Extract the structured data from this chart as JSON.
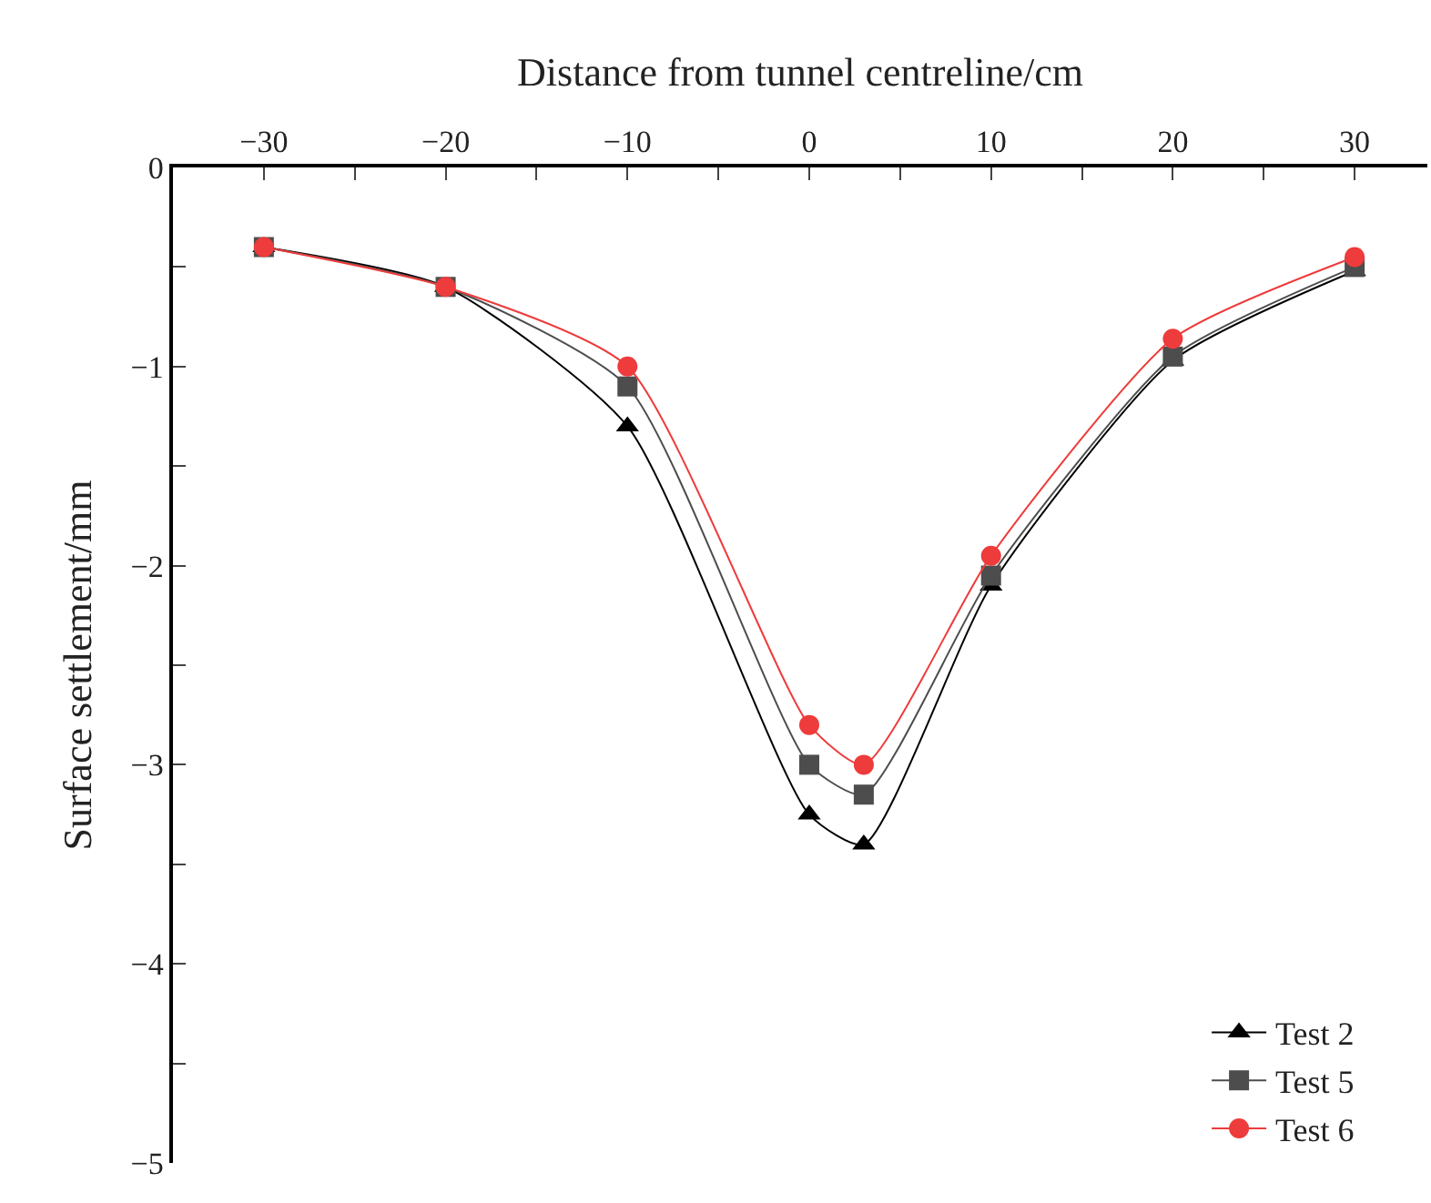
{
  "chart_data": {
    "type": "line",
    "xlabel": "Distance from tunnel centreline/cm",
    "ylabel": "Surface settlement/mm",
    "x": [
      -30,
      -20,
      -10,
      0,
      3,
      10,
      20,
      30
    ],
    "series": [
      {
        "name": "Test 2",
        "color": "#000000",
        "marker": "triangle",
        "values": [
          -0.4,
          -0.6,
          -1.3,
          -3.25,
          -3.4,
          -2.1,
          -0.97,
          -0.52
        ]
      },
      {
        "name": "Test 5",
        "color": "#4d4d4d",
        "marker": "square",
        "values": [
          -0.4,
          -0.6,
          -1.1,
          -3.0,
          -3.15,
          -2.05,
          -0.95,
          -0.5
        ]
      },
      {
        "name": "Test 6",
        "color": "#ee3b3b",
        "marker": "circle",
        "values": [
          -0.4,
          -0.6,
          -1.0,
          -2.8,
          -3.0,
          -1.95,
          -0.86,
          -0.45
        ]
      }
    ],
    "xlim": [
      -35,
      34
    ],
    "xticks": [
      {
        "value": -30,
        "label": "−30"
      },
      {
        "value": -25,
        "label": null
      },
      {
        "value": -20,
        "label": "−20"
      },
      {
        "value": -15,
        "label": null
      },
      {
        "value": -10,
        "label": "−10"
      },
      {
        "value": -5,
        "label": null
      },
      0,
      {
        "value": 5,
        "label": null
      },
      10,
      {
        "value": 15,
        "label": null
      },
      20,
      {
        "value": 25,
        "label": null
      },
      30
    ],
    "ylim": [
      -5,
      0
    ],
    "yticks": [
      {
        "value": -5,
        "label": "−5"
      },
      {
        "value": -4.5,
        "label": null
      },
      {
        "value": -4,
        "label": "−4"
      },
      {
        "value": -3.5,
        "label": null
      },
      {
        "value": -3,
        "label": "−3"
      },
      {
        "value": -2.5,
        "label": null
      },
      {
        "value": -2,
        "label": "−2"
      },
      {
        "value": -1.5,
        "label": null
      },
      {
        "value": -1,
        "label": "−1"
      },
      {
        "value": -0.5,
        "label": null
      },
      0
    ],
    "grid": false,
    "legend": "bottom right",
    "line_style": "solid"
  }
}
